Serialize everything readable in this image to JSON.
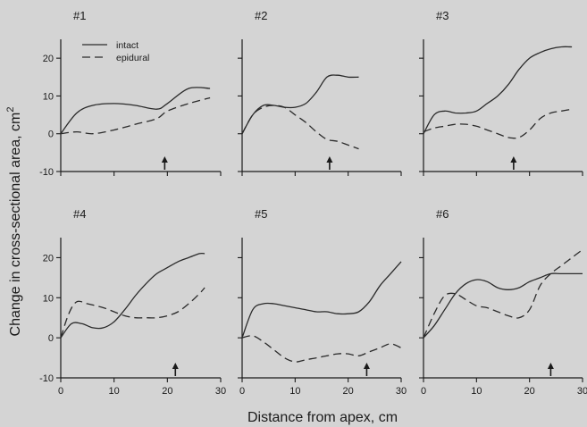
{
  "chart_data": {
    "type": "line",
    "x_axis_title": "Distance from apex, cm",
    "y_axis_title": "Change in cross-sectional area, cm",
    "y_axis_title_superscript": "2",
    "x_range": [
      0,
      30
    ],
    "y_range": [
      -10,
      25
    ],
    "x_ticks": [
      0,
      10,
      20,
      30
    ],
    "y_ticks": [
      -10,
      0,
      10,
      20
    ],
    "x_tick_labels": [
      "0",
      "10",
      "20",
      "30"
    ],
    "y_tick_labels": [
      "-10",
      "0",
      "10",
      "20"
    ],
    "legend": {
      "intact": "intact",
      "epidural": "epidural",
      "placement": "top-left of panel #1"
    },
    "grid": false,
    "panels": [
      {
        "label": "#1",
        "arrow_x": 19.5,
        "series": [
          {
            "name": "intact",
            "x": [
              0,
              3,
              6,
              10,
              14,
              18,
              20,
              24,
              28
            ],
            "y": [
              0,
              5.5,
              7.5,
              8,
              7.5,
              6.5,
              8,
              12,
              12
            ]
          },
          {
            "name": "epidural",
            "x": [
              0,
              3,
              6,
              10,
              14,
              18,
              20,
              24,
              28
            ],
            "y": [
              0,
              0.5,
              0,
              1,
              2.5,
              4,
              6,
              8,
              9.5
            ]
          }
        ]
      },
      {
        "label": "#2",
        "arrow_x": 16.5,
        "series": [
          {
            "name": "intact",
            "x": [
              0,
              2,
              4,
              6,
              8,
              10,
              12,
              14,
              16,
              18,
              20,
              22
            ],
            "y": [
              0,
              5,
              7.5,
              7.5,
              7,
              7,
              8,
              11,
              15,
              15.5,
              15,
              15
            ]
          },
          {
            "name": "epidural",
            "x": [
              0,
              2,
              4,
              6,
              8,
              10,
              12,
              14,
              16,
              18,
              20,
              22
            ],
            "y": [
              0,
              5,
              7,
              7.5,
              7,
              5,
              3,
              0.5,
              -1.5,
              -2,
              -3,
              -4
            ]
          }
        ]
      },
      {
        "label": "#3",
        "arrow_x": 17,
        "series": [
          {
            "name": "intact",
            "x": [
              0,
              2,
              4,
              6,
              8,
              10,
              12,
              14,
              16,
              18,
              20,
              22,
              24,
              26,
              28
            ],
            "y": [
              0,
              5,
              6,
              5.5,
              5.5,
              6,
              8,
              10,
              13,
              17,
              20,
              21.5,
              22.5,
              23,
              23
            ]
          },
          {
            "name": "epidural",
            "x": [
              0,
              2,
              4,
              6,
              8,
              10,
              12,
              14,
              16,
              18,
              20,
              22,
              24,
              26,
              28
            ],
            "y": [
              0.5,
              1.5,
              2,
              2.5,
              2.5,
              2,
              1,
              0,
              -1,
              -1,
              1,
              4,
              5.5,
              6,
              6.5
            ]
          }
        ]
      },
      {
        "label": "#4",
        "arrow_x": 21.5,
        "series": [
          {
            "name": "intact",
            "x": [
              0,
              2,
              4,
              6,
              8,
              10,
              12,
              14,
              16,
              18,
              20,
              22,
              24,
              26,
              27
            ],
            "y": [
              0,
              3.5,
              3.5,
              2.5,
              2.5,
              4,
              7,
              10.5,
              13.5,
              16,
              17.5,
              19,
              20,
              21,
              21
            ]
          },
          {
            "name": "epidural",
            "x": [
              0,
              1.5,
              3,
              5,
              8,
              10,
              12,
              14,
              16,
              18,
              20,
              22,
              24,
              26,
              27
            ],
            "y": [
              0,
              6,
              9,
              8.5,
              7.5,
              6.5,
              5.5,
              5,
              5,
              5,
              5.5,
              6.5,
              8.5,
              11,
              12.5
            ]
          }
        ]
      },
      {
        "label": "#5",
        "arrow_x": 23.5,
        "series": [
          {
            "name": "intact",
            "x": [
              0,
              2,
              4,
              6,
              8,
              10,
              12,
              14,
              16,
              18,
              20,
              22,
              24,
              26,
              28,
              30
            ],
            "y": [
              0,
              7,
              8.5,
              8.5,
              8,
              7.5,
              7,
              6.5,
              6.5,
              6,
              6,
              6.5,
              9,
              13,
              16,
              19
            ]
          },
          {
            "name": "epidural",
            "x": [
              0,
              2,
              4,
              6,
              8,
              10,
              12,
              14,
              16,
              18,
              20,
              22,
              24,
              26,
              28,
              30
            ],
            "y": [
              0,
              0.5,
              -1,
              -3,
              -5,
              -6,
              -5.5,
              -5,
              -4.5,
              -4,
              -4,
              -4.5,
              -3.5,
              -2.5,
              -1.5,
              -2.5
            ]
          }
        ]
      },
      {
        "label": "#6",
        "arrow_x": 24,
        "series": [
          {
            "name": "intact",
            "x": [
              0,
              2,
              4,
              6,
              8,
              10,
              12,
              14,
              16,
              18,
              20,
              22,
              24,
              26,
              28,
              30
            ],
            "y": [
              0,
              3,
              7,
              11,
              13.5,
              14.5,
              14,
              12.5,
              12,
              12.5,
              14,
              15,
              16,
              16,
              16,
              16
            ]
          },
          {
            "name": "epidural",
            "x": [
              0,
              2,
              4,
              6,
              8,
              10,
              12,
              14,
              16,
              18,
              20,
              22,
              24,
              26,
              28,
              30
            ],
            "y": [
              0,
              6,
              10.5,
              11,
              9.5,
              8,
              7.5,
              6.5,
              5.5,
              5,
              7,
              13,
              16,
              18,
              20,
              22
            ]
          }
        ]
      }
    ]
  }
}
